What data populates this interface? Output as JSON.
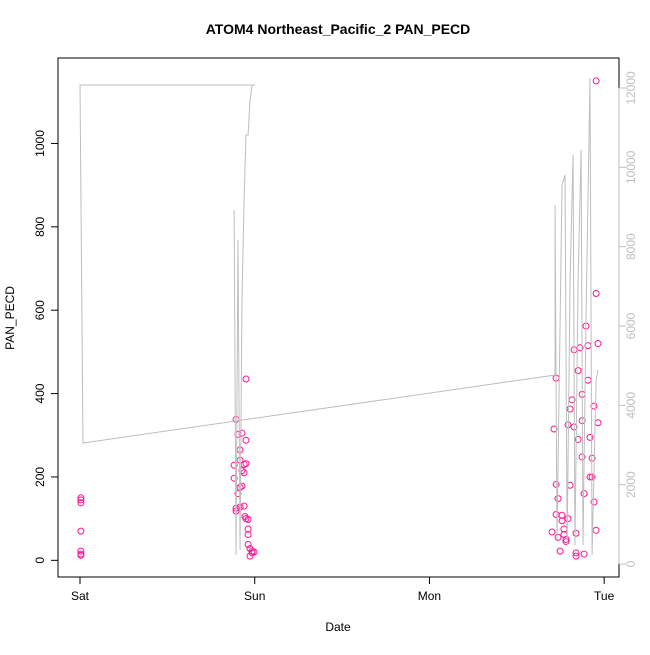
{
  "chart_data": {
    "type": "scatter",
    "title": "ATOM4 Northeast_Pacific_2 PAN_PECD",
    "x_label": "Date",
    "y_label": "PAN_PECD",
    "xlim": [
      -0.126,
      3.085
    ],
    "xticks": [
      {
        "value": 0,
        "label": "Sat"
      },
      {
        "value": 1,
        "label": "Sun"
      },
      {
        "value": 2,
        "label": "Mon"
      },
      {
        "value": 3,
        "label": "Tue"
      }
    ],
    "ylim": [
      -40,
      1205
    ],
    "yticks": [
      0,
      200,
      400,
      600,
      800,
      1000
    ],
    "y2lim": [
      -328,
      12756
    ],
    "y2ticks": [
      0,
      2000,
      4000,
      6000,
      8000,
      10000,
      12000
    ],
    "y2color": "#bebebe",
    "series": [
      {
        "type": "scatter",
        "color": "#ff1493",
        "x": [
          0.005,
          0.005,
          0.005,
          0.005,
          0.005,
          0.005,
          0.005,
          0.893,
          0.882,
          0.904,
          0.916,
          0.927,
          0.939,
          0.916,
          0.927,
          0.904,
          0.916,
          0.927,
          0.882,
          0.893,
          0.893,
          0.916,
          0.939,
          0.944,
          0.95,
          0.962,
          0.95,
          0.939,
          0.95,
          0.962,
          0.962,
          0.962,
          0.973,
          0.985,
          0.985,
          0.996,
          0.973,
          0.95,
          2.713,
          2.725,
          2.725,
          2.736,
          2.725,
          2.702,
          2.736,
          2.748,
          2.759,
          2.759,
          2.77,
          2.77,
          2.782,
          2.793,
          2.782,
          2.793,
          2.805,
          2.805,
          2.816,
          2.828,
          2.828,
          2.839,
          2.839,
          2.839,
          2.851,
          2.851,
          2.862,
          2.874,
          2.874,
          2.874,
          2.885,
          2.885,
          2.896,
          2.908,
          2.908,
          2.919,
          2.919,
          2.931,
          2.931,
          2.942,
          2.942,
          2.954,
          2.954,
          2.965,
          2.965,
          2.954
        ],
        "values": [
          150,
          145,
          138,
          70,
          22,
          15,
          12,
          338,
          228,
          302,
          240,
          305,
          230,
          265,
          215,
          160,
          175,
          178,
          197,
          125,
          118,
          128,
          130,
          105,
          100,
          98,
          288,
          210,
          435,
          75,
          62,
          38,
          28,
          18,
          22,
          20,
          10,
          232,
          315,
          437,
          182,
          148,
          110,
          68,
          55,
          22,
          95,
          108,
          62,
          75,
          45,
          325,
          50,
          100,
          180,
          363,
          385,
          505,
          320,
          65,
          18,
          10,
          455,
          290,
          510,
          335,
          398,
          248,
          160,
          15,
          562,
          515,
          432,
          295,
          200,
          200,
          245,
          370,
          140,
          72,
          640,
          520,
          330,
          1150
        ]
      },
      {
        "type": "line",
        "axis": "y2",
        "color": "#bebebe",
        "x": [
          0.882,
          0.893,
          0.904,
          0.916,
          0.927,
          0.939,
          0.95,
          0.962,
          0.973,
          0.985,
          1.002,
          0,
          0.017,
          2.719,
          2.719,
          2.73,
          2.759,
          2.776,
          2.788,
          2.805,
          2.822,
          2.833,
          2.851,
          2.868,
          2.879,
          2.896,
          2.919,
          2.931,
          2.954,
          2.965
        ],
        "values": [
          8920,
          227,
          8168,
          353,
          6655,
          9176,
          10814,
          10814,
          11697,
          12075,
          12075,
          12075,
          3050,
          4764,
          9050,
          605,
          9554,
          9806,
          479,
          7159,
          10310,
          479,
          7159,
          10436,
          479,
          6151,
          12251,
          227,
          4638,
          4890
        ]
      }
    ]
  }
}
